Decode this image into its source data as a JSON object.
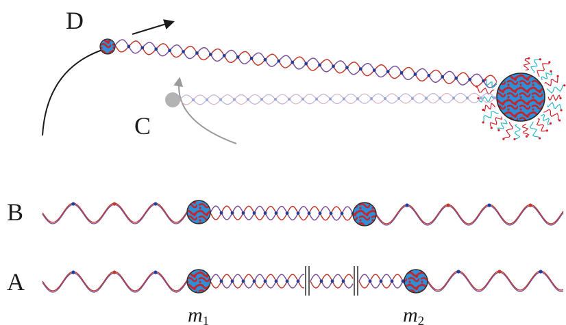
{
  "labels": {
    "D": "D",
    "C": "C",
    "B": "B",
    "A": "A",
    "m1": "m",
    "m1_sub": "1",
    "m2": "m",
    "m2_sub": "2"
  },
  "colors": {
    "strand_red": "#c0392b",
    "strand_purple": "#7b4f9a",
    "node_blue": "#1f3fa0",
    "ball_blue": "#2e8fd8",
    "ball_red": "#c0282d",
    "ball_outline": "#2a2a2a",
    "ghost_ball": "#b3b3b3",
    "ghost_strand": "#d8a8c0",
    "emission_red": "#d0202a",
    "emission_cyan": "#2ab8c8",
    "arrow_black": "#1a1a1a",
    "arrow_gray": "#9a9a9a"
  },
  "icons": {
    "particle_ball": "textured-sphere-icon",
    "direction_arrow": "arrow-icon"
  }
}
